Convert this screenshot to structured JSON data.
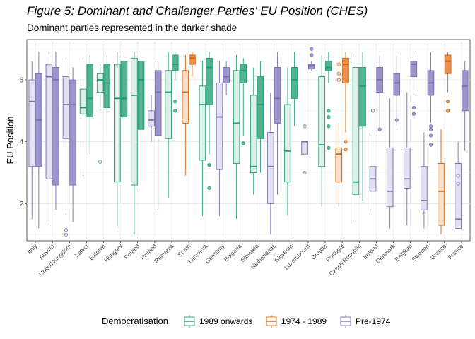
{
  "chart_data": {
    "type": "boxplot",
    "title": "Figure 5: Dominant and Challenger Parties' EU Position (CHES)",
    "subtitle": "Dominant parties represented in the darker shade",
    "ylabel": "EU Position",
    "xlabel": "",
    "ylim": [
      0.8,
      7.3
    ],
    "yticks": [
      2,
      4,
      6
    ],
    "grid": true,
    "legend_position": "bottom",
    "legend_title": "Democratisation",
    "legend": [
      {
        "label": "1989 onwards",
        "color": "#1b9e77"
      },
      {
        "label": "1974 - 1989",
        "color": "#d95f02"
      },
      {
        "label": "Pre-1974",
        "color": "#7570b3"
      }
    ],
    "colors": {
      "1989 onwards": {
        "dark_fill": "#52b48f",
        "light_fill": "#dcf0e8",
        "line": "#1b9e77"
      },
      "1974 - 1989": {
        "dark_fill": "#e8914f",
        "light_fill": "#f8dfca",
        "line": "#d95f02"
      },
      "Pre-1974": {
        "dark_fill": "#9b95cc",
        "light_fill": "#e2e0f1",
        "line": "#7570b3"
      }
    },
    "categories": [
      "Italy",
      "Austria",
      "United Kingdom",
      "Latvia",
      "Estonia",
      "Hungary",
      "Poland",
      "Finland",
      "Romania",
      "Spain",
      "Lithuania",
      "Germany",
      "Bulgaria",
      "Slovakia",
      "Netherlands",
      "Slovenia",
      "Luxembourg",
      "Croatia",
      "Portugal",
      "Czech Republic",
      "Ireland",
      "Denmark",
      "Belgium",
      "Sweden",
      "Greece",
      "France"
    ],
    "countries": [
      {
        "name": "Italy",
        "group": "Pre-1974",
        "challenger": {
          "min": 1.5,
          "q1": 3.2,
          "median": 5.3,
          "q3": 6.0,
          "max": 6.6,
          "outliers": []
        },
        "dominant": {
          "min": 1.2,
          "q1": 3.2,
          "median": 4.7,
          "q3": 6.2,
          "max": 6.9,
          "outliers": []
        }
      },
      {
        "name": "Austria",
        "group": "Pre-1974",
        "challenger": {
          "min": 1.3,
          "q1": 2.8,
          "median": 6.1,
          "q3": 6.5,
          "max": 6.9,
          "outliers": []
        },
        "dominant": {
          "min": 1.8,
          "q1": 2.6,
          "median": 6.0,
          "q3": 6.4,
          "max": 6.9,
          "outliers": []
        }
      },
      {
        "name": "United Kingdom",
        "group": "Pre-1974",
        "challenger": {
          "min": 1.7,
          "q1": 4.1,
          "median": 5.2,
          "q3": 6.1,
          "max": 6.6,
          "outliers": [
            1.0,
            1.15
          ]
        },
        "dominant": {
          "min": 1.4,
          "q1": 2.6,
          "median": 5.2,
          "q3": 6.0,
          "max": 6.4,
          "outliers": []
        }
      },
      {
        "name": "Latvia",
        "group": "1989 onwards",
        "challenger": {
          "min": 2.9,
          "q1": 4.9,
          "median": 5.1,
          "q3": 5.7,
          "max": 6.6,
          "outliers": []
        },
        "dominant": {
          "min": 3.6,
          "q1": 4.8,
          "median": 5.4,
          "q3": 6.5,
          "max": 6.8,
          "outliers": []
        }
      },
      {
        "name": "Estonia",
        "group": "1989 onwards",
        "challenger": {
          "min": 5.0,
          "q1": 5.6,
          "median": 6.0,
          "q3": 6.2,
          "max": 6.5,
          "outliers": [
            3.35
          ]
        },
        "dominant": {
          "min": 4.2,
          "q1": 5.1,
          "median": 5.9,
          "q3": 6.5,
          "max": 6.8,
          "outliers": []
        }
      },
      {
        "name": "Hungary",
        "group": "1989 onwards",
        "challenger": {
          "min": 1.2,
          "q1": 2.7,
          "median": 5.4,
          "q3": 6.5,
          "max": 6.9,
          "outliers": []
        },
        "dominant": {
          "min": 2.0,
          "q1": 4.8,
          "median": 5.4,
          "q3": 6.6,
          "max": 6.9,
          "outliers": []
        }
      },
      {
        "name": "Poland",
        "group": "1989 onwards",
        "challenger": {
          "min": 1.0,
          "q1": 2.6,
          "median": 5.5,
          "q3": 6.7,
          "max": 6.9,
          "outliers": []
        },
        "dominant": {
          "min": 2.5,
          "q1": 4.4,
          "median": 6.0,
          "q3": 6.6,
          "max": 6.9,
          "outliers": []
        }
      },
      {
        "name": "Finland",
        "group": "Pre-1974",
        "challenger": {
          "min": 4.0,
          "q1": 4.5,
          "median": 4.7,
          "q3": 5.0,
          "max": 5.5,
          "outliers": []
        },
        "dominant": {
          "min": 1.8,
          "q1": 4.2,
          "median": 5.6,
          "q3": 6.3,
          "max": 6.6,
          "outliers": []
        }
      },
      {
        "name": "Romania",
        "group": "1989 onwards",
        "challenger": {
          "min": 2.2,
          "q1": 4.1,
          "median": 5.6,
          "q3": 6.3,
          "max": 6.9,
          "outliers": []
        },
        "dominant": {
          "min": 6.0,
          "q1": 6.3,
          "median": 6.5,
          "q3": 6.8,
          "max": 6.9,
          "outliers": [
            5.3,
            5.0
          ]
        }
      },
      {
        "name": "Spain",
        "group": "1974 - 1989",
        "challenger": {
          "min": 2.9,
          "q1": 4.6,
          "median": 5.6,
          "q3": 6.3,
          "max": 6.8,
          "outliers": []
        },
        "dominant": {
          "min": 6.1,
          "q1": 6.5,
          "median": 6.7,
          "q3": 6.8,
          "max": 6.9,
          "outliers": []
        }
      },
      {
        "name": "Lithuania",
        "group": "1989 onwards",
        "challenger": {
          "min": 1.6,
          "q1": 3.4,
          "median": 5.2,
          "q3": 5.8,
          "max": 6.6,
          "outliers": []
        },
        "dominant": {
          "min": 3.6,
          "q1": 5.2,
          "median": 6.4,
          "q3": 6.7,
          "max": 6.9,
          "outliers": [
            3.25,
            2.5
          ]
        }
      },
      {
        "name": "Germany",
        "group": "Pre-1974",
        "challenger": {
          "min": 1.6,
          "q1": 3.1,
          "median": 4.8,
          "q3": 5.9,
          "max": 6.6,
          "outliers": []
        },
        "dominant": {
          "min": 5.5,
          "q1": 5.9,
          "median": 6.1,
          "q3": 6.4,
          "max": 6.6,
          "outliers": []
        }
      },
      {
        "name": "Bulgaria",
        "group": "1989 onwards",
        "challenger": {
          "min": 1.5,
          "q1": 3.3,
          "median": 4.6,
          "q3": 6.3,
          "max": 6.8,
          "outliers": []
        },
        "dominant": {
          "min": 4.2,
          "q1": 5.9,
          "median": 6.3,
          "q3": 6.5,
          "max": 6.7,
          "outliers": [
            3.95
          ]
        }
      },
      {
        "name": "Slovakia",
        "group": "1989 onwards",
        "challenger": {
          "min": 2.3,
          "q1": 3.0,
          "median": 3.2,
          "q3": 5.5,
          "max": 6.4,
          "outliers": []
        },
        "dominant": {
          "min": 3.0,
          "q1": 4.1,
          "median": 5.2,
          "q3": 6.1,
          "max": 6.6,
          "outliers": []
        }
      },
      {
        "name": "Netherlands",
        "group": "Pre-1974",
        "challenger": {
          "min": 1.0,
          "q1": 2.0,
          "median": 3.2,
          "q3": 4.3,
          "max": 5.6,
          "outliers": []
        },
        "dominant": {
          "min": 2.3,
          "q1": 4.6,
          "median": 5.4,
          "q3": 6.4,
          "max": 6.9,
          "outliers": []
        }
      },
      {
        "name": "Slovenia",
        "group": "1989 onwards",
        "challenger": {
          "min": 1.6,
          "q1": 2.7,
          "median": 3.7,
          "q3": 5.2,
          "max": 6.4,
          "outliers": []
        },
        "dominant": {
          "min": 4.5,
          "q1": 5.4,
          "median": 6.0,
          "q3": 6.4,
          "max": 6.9,
          "outliers": []
        }
      },
      {
        "name": "Luxembourg",
        "group": "Pre-1974",
        "challenger": {
          "min": 3.6,
          "q1": 3.6,
          "median": 4.0,
          "q3": 4.0,
          "max": 4.0,
          "outliers": [
            4.5,
            3.0
          ]
        },
        "dominant": {
          "min": 6.3,
          "q1": 6.35,
          "median": 6.45,
          "q3": 6.5,
          "max": 6.6,
          "outliers": [
            7.0,
            6.8
          ]
        }
      },
      {
        "name": "Croatia",
        "group": "1989 onwards",
        "challenger": {
          "min": 1.9,
          "q1": 3.2,
          "median": 3.9,
          "q3": 6.1,
          "max": 6.8,
          "outliers": []
        },
        "dominant": {
          "min": 5.9,
          "q1": 6.3,
          "median": 6.4,
          "q3": 6.6,
          "max": 6.9,
          "outliers": [
            5.0,
            4.8,
            4.5,
            3.8
          ]
        }
      },
      {
        "name": "Portugal",
        "group": "1974 - 1989",
        "challenger": {
          "min": 1.9,
          "q1": 2.7,
          "median": 3.6,
          "q3": 3.8,
          "max": 4.6,
          "outliers": [
            6.5,
            6.2,
            6.0
          ]
        },
        "dominant": {
          "min": 4.3,
          "q1": 5.9,
          "median": 6.5,
          "q3": 6.7,
          "max": 6.9,
          "outliers": [
            4.0,
            3.75
          ]
        }
      },
      {
        "name": "Czech Republic",
        "group": "1989 onwards",
        "challenger": {
          "min": 1.4,
          "q1": 2.3,
          "median": 2.7,
          "q3": 6.4,
          "max": 6.8,
          "outliers": []
        },
        "dominant": {
          "min": 2.1,
          "q1": 4.5,
          "median": 5.8,
          "q3": 6.4,
          "max": 6.9,
          "outliers": []
        }
      },
      {
        "name": "Ireland",
        "group": "Pre-1974",
        "challenger": {
          "min": 1.7,
          "q1": 2.4,
          "median": 2.8,
          "q3": 3.2,
          "max": 4.3,
          "outliers": [
            5.0
          ]
        },
        "dominant": {
          "min": 4.4,
          "q1": 5.6,
          "median": 6.0,
          "q3": 6.4,
          "max": 6.8,
          "outliers": [
            4.4
          ]
        }
      },
      {
        "name": "Denmark",
        "group": "Pre-1974",
        "challenger": {
          "min": 1.2,
          "q1": 1.9,
          "median": 2.4,
          "q3": 3.8,
          "max": 5.4,
          "outliers": []
        },
        "dominant": {
          "min": 4.5,
          "q1": 5.5,
          "median": 5.9,
          "q3": 6.2,
          "max": 6.8,
          "outliers": [
            4.7
          ]
        }
      },
      {
        "name": "Belgium",
        "group": "Pre-1974",
        "challenger": {
          "min": 1.3,
          "q1": 2.5,
          "median": 2.8,
          "q3": 3.8,
          "max": 5.6,
          "outliers": []
        },
        "dominant": {
          "min": 5.5,
          "q1": 6.1,
          "median": 6.5,
          "q3": 6.6,
          "max": 6.9,
          "outliers": [
            5.1,
            4.9
          ]
        }
      },
      {
        "name": "Sweden",
        "group": "Pre-1974",
        "challenger": {
          "min": 1.2,
          "q1": 1.8,
          "median": 2.1,
          "q3": 3.2,
          "max": 4.3,
          "outliers": []
        },
        "dominant": {
          "min": 4.6,
          "q1": 5.5,
          "median": 5.9,
          "q3": 6.3,
          "max": 6.9,
          "outliers": [
            4.5,
            4.4,
            4.2,
            3.9
          ]
        }
      },
      {
        "name": "Greece",
        "group": "1974 - 1989",
        "challenger": {
          "min": 1.0,
          "q1": 1.3,
          "median": 2.4,
          "q3": 3.3,
          "max": 4.4,
          "outliers": []
        },
        "dominant": {
          "min": 5.6,
          "q1": 6.2,
          "median": 6.6,
          "q3": 6.8,
          "max": 6.9,
          "outliers": [
            5.3,
            5.0
          ]
        }
      },
      {
        "name": "France",
        "group": "Pre-1974",
        "challenger": {
          "min": 1.2,
          "q1": 1.2,
          "median": 1.5,
          "q3": 3.3,
          "max": 4.0,
          "outliers": [
            2.9,
            2.65
          ]
        },
        "dominant": {
          "min": 3.7,
          "q1": 5.0,
          "median": 5.8,
          "q3": 6.3,
          "max": 6.6,
          "outliers": []
        }
      }
    ]
  }
}
